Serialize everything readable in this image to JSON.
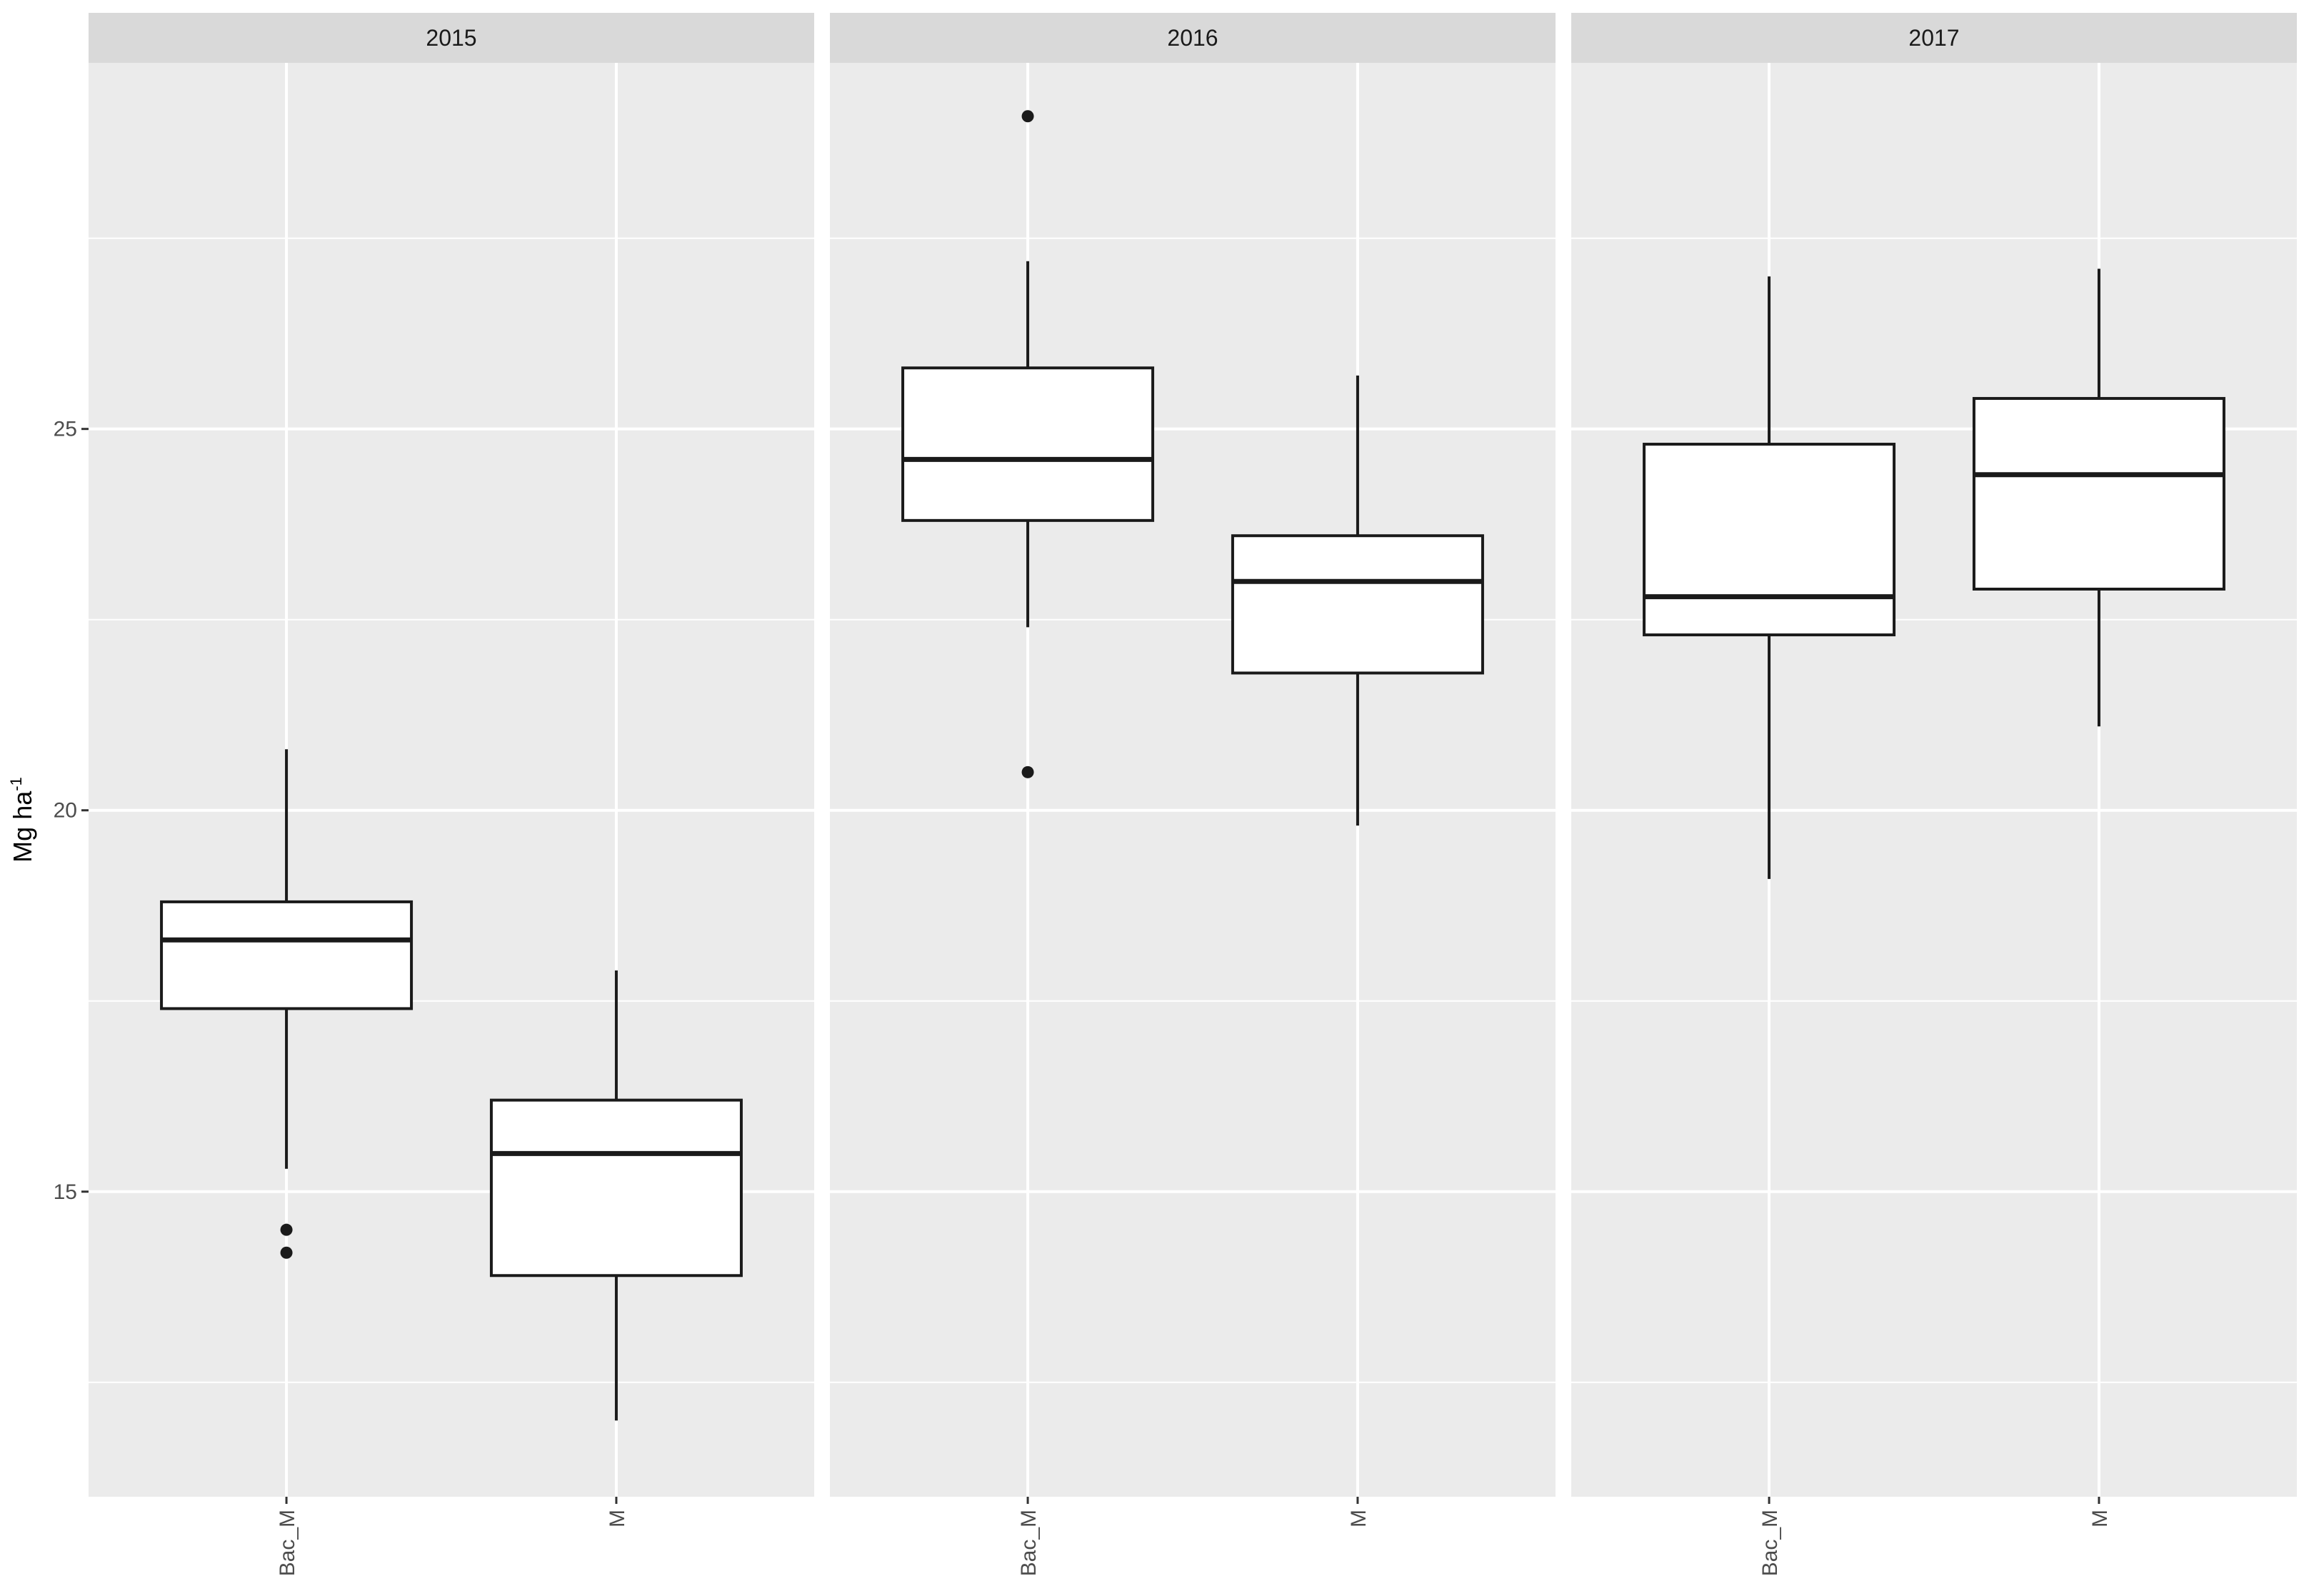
{
  "chart_data": {
    "type": "boxplot",
    "facet_by": "year",
    "ylabel": "Mg ha",
    "ylabel_superscript": "-1",
    "ylim": [
      11,
      29.8
    ],
    "y_ticks": [
      15,
      20,
      25
    ],
    "categories": [
      "Bac_M",
      "M"
    ],
    "grid": true,
    "colors": {
      "panel_bg": "#ebebeb",
      "strip_bg": "#d9d9d9",
      "grid_line": "#ffffff",
      "box_fill": "#ffffff",
      "box_line": "#1a1a1a"
    },
    "panels": [
      {
        "label": "2015",
        "boxes": [
          {
            "category": "Bac_M",
            "whisker_low": 15.3,
            "q1": 17.4,
            "median": 18.3,
            "q3": 18.8,
            "whisker_high": 20.8,
            "outliers": [
              14.5,
              14.2
            ]
          },
          {
            "category": "M",
            "whisker_low": 12.0,
            "q1": 13.9,
            "median": 15.5,
            "q3": 16.2,
            "whisker_high": 17.9,
            "outliers": []
          }
        ]
      },
      {
        "label": "2016",
        "boxes": [
          {
            "category": "Bac_M",
            "whisker_low": 22.4,
            "q1": 23.8,
            "median": 24.6,
            "q3": 25.8,
            "whisker_high": 27.2,
            "outliers": [
              29.1,
              20.5
            ]
          },
          {
            "category": "M",
            "whisker_low": 19.8,
            "q1": 21.8,
            "median": 23.0,
            "q3": 23.6,
            "whisker_high": 25.7,
            "outliers": []
          }
        ]
      },
      {
        "label": "2017",
        "boxes": [
          {
            "category": "Bac_M",
            "whisker_low": 19.1,
            "q1": 22.3,
            "median": 22.8,
            "q3": 24.8,
            "whisker_high": 27.0,
            "outliers": []
          },
          {
            "category": "M",
            "whisker_low": 21.1,
            "q1": 22.9,
            "median": 24.4,
            "q3": 25.4,
            "whisker_high": 27.1,
            "outliers": []
          }
        ]
      }
    ]
  }
}
